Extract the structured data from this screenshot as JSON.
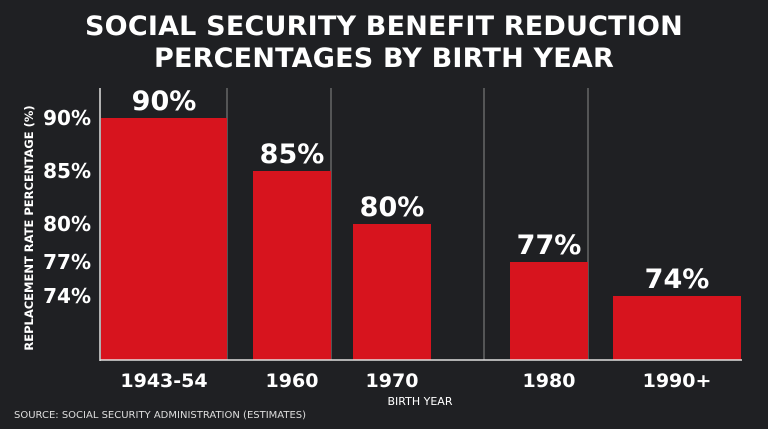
{
  "chart_data": {
    "type": "bar",
    "title": "SOCIAL SECURITY BENEFIT REDUCTION PERCENTAGES BY BIRTH YEAR",
    "title_lines": [
      "SOCIAL SECURITY BENEFIT REDUCTION",
      "PERCENTAGES BY BIRTH YEAR"
    ],
    "categories": [
      "1943-54",
      "1960",
      "1970",
      "1980",
      "1990+"
    ],
    "values": [
      90,
      85,
      80,
      77,
      74
    ],
    "data_labels": [
      "90%",
      "85%",
      "80%",
      "77%",
      "74%"
    ],
    "xlabel": "BIRTH YEAR",
    "ylabel": "REPLACEMENT RATE PERCENTAGE (%)",
    "yticks": [
      90,
      85,
      80,
      77,
      74
    ],
    "ytick_labels": [
      "90%",
      "85%",
      "80%",
      "77%",
      "74%"
    ],
    "grid": "vertical lines between categories",
    "source": "SOURCE: SOCIAL SECURITY ADMINISTRATION (ESTIMATES)",
    "colors": {
      "bar": "#d7141e",
      "background": "#1f2023",
      "text": "#ffffff"
    }
  }
}
